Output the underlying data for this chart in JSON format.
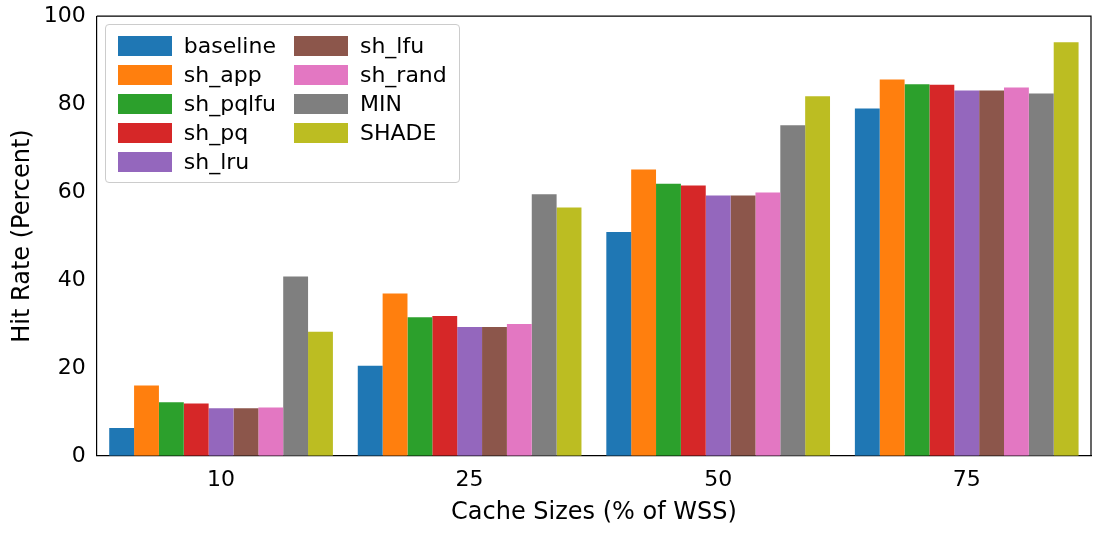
{
  "chart_data": {
    "type": "bar",
    "xlabel": "Cache Sizes (% of WSS)",
    "ylabel": "Hit Rate (Percent)",
    "categories": [
      "10",
      "25",
      "50",
      "75"
    ],
    "ylim": [
      0,
      100
    ],
    "yticks": [
      0,
      20,
      40,
      60,
      80,
      100
    ],
    "grid": false,
    "legend": "top left",
    "series": [
      {
        "name": "baseline",
        "color": "#1f77b4",
        "values": [
          6.3,
          20.5,
          50.9,
          79.0
        ]
      },
      {
        "name": "sh_app",
        "color": "#ff7f0e",
        "values": [
          16.0,
          36.9,
          65.1,
          85.6
        ]
      },
      {
        "name": "sh_pqlfu",
        "color": "#2ca02c",
        "values": [
          12.2,
          31.5,
          61.9,
          84.5
        ]
      },
      {
        "name": "sh_pq",
        "color": "#d62728",
        "values": [
          11.9,
          31.8,
          61.5,
          84.4
        ]
      },
      {
        "name": "sh_lru",
        "color": "#9467bd",
        "values": [
          10.8,
          29.3,
          59.2,
          83.1
        ]
      },
      {
        "name": "sh_lfu",
        "color": "#8c564b",
        "values": [
          10.8,
          29.3,
          59.2,
          83.1
        ]
      },
      {
        "name": "sh_rand",
        "color": "#e377c2",
        "values": [
          11.0,
          30.0,
          59.9,
          83.8
        ]
      },
      {
        "name": "MIN",
        "color": "#7f7f7f",
        "values": [
          40.8,
          59.5,
          75.2,
          82.4
        ]
      },
      {
        "name": "SHADE",
        "color": "#bcbd22",
        "values": [
          28.2,
          56.5,
          81.8,
          94.1
        ]
      }
    ]
  }
}
